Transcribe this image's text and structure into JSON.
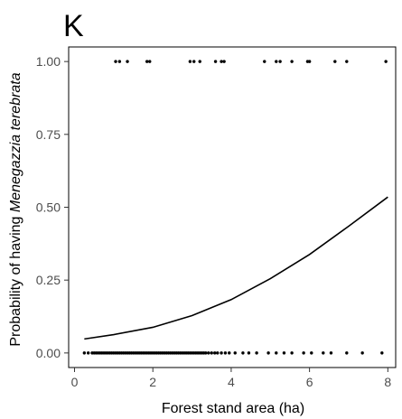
{
  "chart_data": {
    "type": "scatter",
    "panel_label": "K",
    "title": "",
    "xlabel": "Forest stand area (ha)",
    "ylabel": "Probability of having Menegazzia terebrata",
    "ylabel_parts": {
      "plain": "Probability of having ",
      "italic": "Menegazzia terebrata"
    },
    "xlim": [
      -0.15,
      8.2
    ],
    "ylim": [
      -0.05,
      1.05
    ],
    "x_ticks": [
      0,
      2,
      4,
      6,
      8
    ],
    "x_tick_labels": [
      "0",
      "2",
      "4",
      "6",
      "8"
    ],
    "y_ticks": [
      0,
      0.25,
      0.5,
      0.75,
      1
    ],
    "y_tick_labels": [
      "0.00",
      "0.25",
      "0.50",
      "0.75",
      "1.00"
    ],
    "grid": false,
    "series": [
      {
        "kind": "points",
        "points_y1": [
          1.05,
          1.15,
          1.35,
          1.85,
          1.92,
          2.95,
          3.05,
          3.2,
          3.6,
          3.75,
          3.82,
          4.85,
          5.15,
          5.25,
          5.55,
          5.95,
          6.0,
          6.65,
          6.95,
          7.95
        ],
        "points_y0": [
          0.25,
          0.35,
          0.45,
          0.5,
          0.55,
          0.6,
          0.65,
          0.7,
          0.75,
          0.8,
          0.85,
          0.9,
          0.95,
          1.0,
          1.05,
          1.1,
          1.15,
          1.2,
          1.25,
          1.3,
          1.35,
          1.4,
          1.45,
          1.5,
          1.55,
          1.6,
          1.65,
          1.7,
          1.75,
          1.8,
          1.85,
          1.9,
          1.95,
          2.0,
          2.05,
          2.1,
          2.15,
          2.2,
          2.25,
          2.3,
          2.35,
          2.4,
          2.45,
          2.5,
          2.55,
          2.6,
          2.65,
          2.7,
          2.75,
          2.8,
          2.85,
          2.9,
          2.95,
          3.0,
          3.05,
          3.1,
          3.15,
          3.2,
          3.25,
          3.3,
          3.35,
          3.42,
          3.5,
          3.58,
          3.65,
          3.75,
          3.85,
          3.95,
          4.1,
          4.3,
          4.45,
          4.65,
          4.95,
          5.15,
          5.35,
          5.55,
          5.85,
          6.05,
          6.35,
          6.55,
          6.95,
          7.35,
          7.85
        ]
      },
      {
        "kind": "line",
        "x": [
          0.25,
          1,
          2,
          3,
          4,
          5,
          6,
          7,
          8
        ],
        "y": [
          0.048,
          0.063,
          0.088,
          0.128,
          0.183,
          0.255,
          0.338,
          0.435,
          0.535
        ]
      }
    ]
  }
}
